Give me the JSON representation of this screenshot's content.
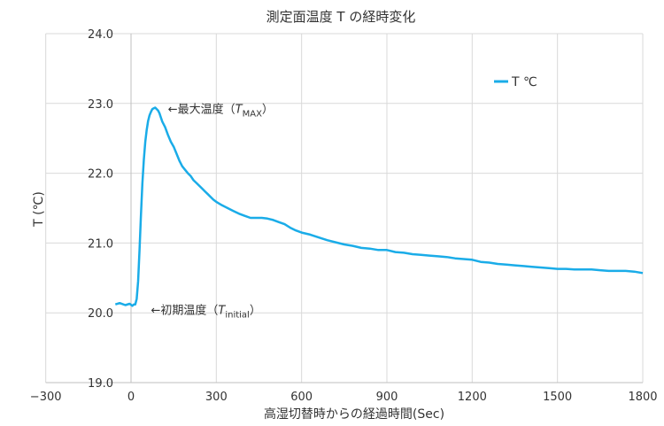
{
  "chart_data": {
    "type": "line",
    "title": "測定面温度 T の経時変化",
    "xlabel": "高湿切替時からの経過時間(Sec)",
    "ylabel": "T (℃)",
    "xlim": [
      -300,
      1800
    ],
    "ylim": [
      19.0,
      24.0
    ],
    "xticks": [
      "-300",
      "0",
      "300",
      "600",
      "900",
      "1200",
      "1500",
      "1800"
    ],
    "yticks": [
      "19.0",
      "20.0",
      "21.0",
      "22.0",
      "23.0",
      "24.0"
    ],
    "grid": true,
    "legend": {
      "position": "top-right",
      "entries": [
        "T ℃"
      ]
    },
    "series": [
      {
        "name": "T ℃",
        "color": "#1AACE8",
        "x": [
          -55,
          -40,
          -20,
          -5,
          5,
          10,
          15,
          20,
          25,
          30,
          35,
          40,
          45,
          50,
          55,
          60,
          65,
          70,
          75,
          80,
          85,
          90,
          95,
          100,
          105,
          110,
          115,
          120,
          130,
          140,
          150,
          160,
          170,
          180,
          190,
          200,
          210,
          220,
          230,
          240,
          250,
          260,
          270,
          280,
          290,
          300,
          320,
          340,
          360,
          380,
          400,
          420,
          440,
          460,
          480,
          500,
          520,
          540,
          560,
          580,
          600,
          630,
          660,
          690,
          720,
          750,
          780,
          810,
          840,
          870,
          900,
          930,
          960,
          990,
          1020,
          1050,
          1080,
          1110,
          1140,
          1170,
          1200,
          1230,
          1260,
          1290,
          1320,
          1350,
          1380,
          1410,
          1440,
          1470,
          1500,
          1530,
          1560,
          1590,
          1620,
          1650,
          1680,
          1710,
          1740,
          1770,
          1800
        ],
        "values": [
          20.12,
          20.14,
          20.11,
          20.13,
          20.1,
          20.12,
          20.12,
          20.2,
          20.45,
          20.9,
          21.4,
          21.85,
          22.2,
          22.45,
          22.62,
          22.75,
          22.83,
          22.88,
          22.92,
          22.93,
          22.94,
          22.92,
          22.9,
          22.86,
          22.8,
          22.74,
          22.7,
          22.66,
          22.55,
          22.45,
          22.38,
          22.28,
          22.18,
          22.1,
          22.05,
          22.0,
          21.96,
          21.9,
          21.86,
          21.82,
          21.78,
          21.74,
          21.7,
          21.66,
          21.62,
          21.59,
          21.54,
          21.5,
          21.46,
          21.42,
          21.39,
          21.36,
          21.36,
          21.36,
          21.35,
          21.33,
          21.3,
          21.27,
          21.22,
          21.18,
          21.15,
          21.12,
          21.08,
          21.04,
          21.01,
          20.98,
          20.96,
          20.93,
          20.92,
          20.9,
          20.9,
          20.87,
          20.86,
          20.84,
          20.83,
          20.82,
          20.81,
          20.8,
          20.78,
          20.77,
          20.76,
          20.73,
          20.72,
          20.7,
          20.69,
          20.68,
          20.67,
          20.66,
          20.65,
          20.64,
          20.63,
          20.63,
          20.62,
          20.62,
          20.62,
          20.61,
          20.6,
          20.6,
          20.6,
          20.59,
          20.57
        ]
      }
    ],
    "annotations": [
      {
        "text": "←最大温度（",
        "math": "T",
        "sub": "MAX",
        "close": "）",
        "x": 130,
        "y": 22.93
      },
      {
        "text": "←初期温度（",
        "math": "T",
        "sub": "initial",
        "close": "）",
        "x": 70,
        "y": 20.05
      }
    ]
  }
}
